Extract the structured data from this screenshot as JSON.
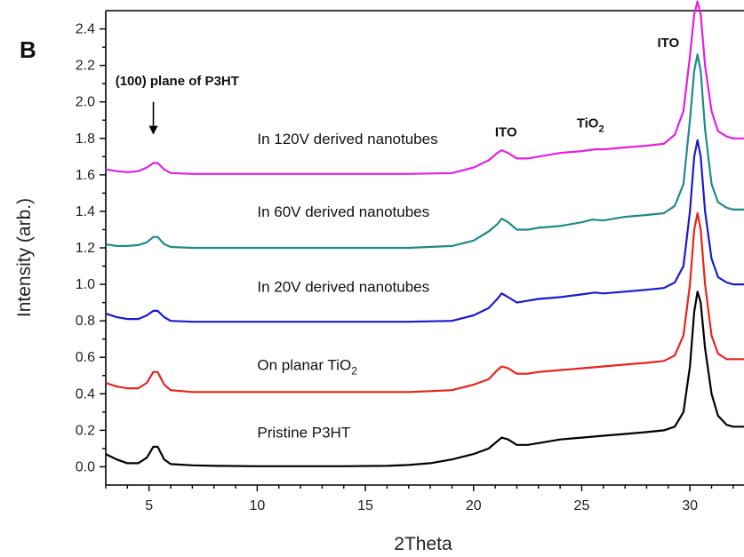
{
  "chart_data": {
    "type": "line",
    "panel_label": "B",
    "xlabel": "2Theta",
    "ylabel": "Intensity (arb.)",
    "xlim": [
      3,
      32.5
    ],
    "ylim": [
      -0.1,
      2.5
    ],
    "xticks": [
      5,
      10,
      15,
      20,
      25,
      30
    ],
    "yticks": [
      0.0,
      0.2,
      0.4,
      0.6,
      0.8,
      1.0,
      1.2,
      1.4,
      1.6,
      1.8,
      2.0,
      2.2,
      2.4
    ],
    "ytick_labels": [
      "0.0",
      "0.2",
      "0.4",
      "0.6",
      "0.8",
      "1.0",
      "1.2",
      "1.4",
      "1.6",
      "1.8",
      "2.0",
      "2.2",
      "2.4"
    ],
    "series": [
      {
        "color": "#000000",
        "label": {
          "text": "Pristine P3HT",
          "x": 10.0,
          "y": 0.16
        },
        "points": [
          [
            3,
            0.07
          ],
          [
            3.5,
            0.04
          ],
          [
            4,
            0.02
          ],
          [
            4.5,
            0.02
          ],
          [
            4.9,
            0.05
          ],
          [
            5.2,
            0.11
          ],
          [
            5.4,
            0.11
          ],
          [
            5.7,
            0.04
          ],
          [
            6,
            0.015
          ],
          [
            7,
            0.008
          ],
          [
            8,
            0.005
          ],
          [
            10,
            0.003
          ],
          [
            12,
            0.003
          ],
          [
            14,
            0.003
          ],
          [
            16,
            0.005
          ],
          [
            17,
            0.01
          ],
          [
            18,
            0.02
          ],
          [
            19,
            0.04
          ],
          [
            20,
            0.07
          ],
          [
            20.7,
            0.1
          ],
          [
            21.1,
            0.14
          ],
          [
            21.3,
            0.16
          ],
          [
            21.6,
            0.15
          ],
          [
            22,
            0.12
          ],
          [
            22.5,
            0.12
          ],
          [
            23,
            0.13
          ],
          [
            24,
            0.15
          ],
          [
            25,
            0.16
          ],
          [
            26,
            0.17
          ],
          [
            27,
            0.18
          ],
          [
            28,
            0.19
          ],
          [
            28.8,
            0.2
          ],
          [
            29.3,
            0.22
          ],
          [
            29.7,
            0.3
          ],
          [
            30,
            0.55
          ],
          [
            30.2,
            0.85
          ],
          [
            30.35,
            0.96
          ],
          [
            30.5,
            0.9
          ],
          [
            30.7,
            0.65
          ],
          [
            31,
            0.4
          ],
          [
            31.3,
            0.28
          ],
          [
            31.7,
            0.23
          ],
          [
            32,
            0.22
          ],
          [
            32.5,
            0.22
          ]
        ]
      },
      {
        "color": "#e8231c",
        "label": {
          "text": "On planar TiO",
          "sub": "2",
          "x": 10.0,
          "y": 0.53
        },
        "points": [
          [
            3,
            0.46
          ],
          [
            3.5,
            0.44
          ],
          [
            4,
            0.43
          ],
          [
            4.5,
            0.43
          ],
          [
            4.9,
            0.46
          ],
          [
            5.2,
            0.52
          ],
          [
            5.4,
            0.52
          ],
          [
            5.7,
            0.45
          ],
          [
            6,
            0.42
          ],
          [
            7,
            0.41
          ],
          [
            9,
            0.41
          ],
          [
            12,
            0.41
          ],
          [
            15,
            0.41
          ],
          [
            17,
            0.41
          ],
          [
            19,
            0.42
          ],
          [
            20,
            0.45
          ],
          [
            20.7,
            0.48
          ],
          [
            21.1,
            0.53
          ],
          [
            21.3,
            0.55
          ],
          [
            21.6,
            0.54
          ],
          [
            22,
            0.51
          ],
          [
            22.5,
            0.51
          ],
          [
            23,
            0.52
          ],
          [
            24,
            0.53
          ],
          [
            25,
            0.54
          ],
          [
            26,
            0.55
          ],
          [
            27,
            0.56
          ],
          [
            28,
            0.57
          ],
          [
            28.8,
            0.58
          ],
          [
            29.3,
            0.61
          ],
          [
            29.7,
            0.72
          ],
          [
            30,
            1.0
          ],
          [
            30.2,
            1.3
          ],
          [
            30.35,
            1.39
          ],
          [
            30.5,
            1.3
          ],
          [
            30.7,
            1.0
          ],
          [
            31,
            0.72
          ],
          [
            31.3,
            0.62
          ],
          [
            31.7,
            0.59
          ],
          [
            32,
            0.59
          ],
          [
            32.5,
            0.59
          ]
        ]
      },
      {
        "color": "#1a1acc",
        "label": {
          "text": "In 20V derived nanotubes",
          "x": 10.0,
          "y": 0.96
        },
        "points": [
          [
            3,
            0.84
          ],
          [
            3.5,
            0.82
          ],
          [
            4,
            0.81
          ],
          [
            4.5,
            0.81
          ],
          [
            4.9,
            0.83
          ],
          [
            5.2,
            0.855
          ],
          [
            5.4,
            0.855
          ],
          [
            5.7,
            0.82
          ],
          [
            6,
            0.8
          ],
          [
            7,
            0.795
          ],
          [
            9,
            0.795
          ],
          [
            12,
            0.795
          ],
          [
            15,
            0.795
          ],
          [
            17,
            0.795
          ],
          [
            19,
            0.8
          ],
          [
            20,
            0.83
          ],
          [
            20.7,
            0.87
          ],
          [
            21.1,
            0.92
          ],
          [
            21.3,
            0.95
          ],
          [
            21.6,
            0.93
          ],
          [
            22,
            0.9
          ],
          [
            22.5,
            0.91
          ],
          [
            23,
            0.92
          ],
          [
            24,
            0.93
          ],
          [
            25,
            0.945
          ],
          [
            25.6,
            0.955
          ],
          [
            26,
            0.95
          ],
          [
            27,
            0.96
          ],
          [
            28,
            0.97
          ],
          [
            28.8,
            0.98
          ],
          [
            29.3,
            1.01
          ],
          [
            29.7,
            1.1
          ],
          [
            30,
            1.4
          ],
          [
            30.2,
            1.7
          ],
          [
            30.35,
            1.79
          ],
          [
            30.5,
            1.7
          ],
          [
            30.7,
            1.4
          ],
          [
            31,
            1.14
          ],
          [
            31.3,
            1.04
          ],
          [
            31.7,
            1.01
          ],
          [
            32,
            1.0
          ],
          [
            32.5,
            1.0
          ]
        ]
      },
      {
        "color": "#1e8a86",
        "label": {
          "text": "In 60V derived nanotubes",
          "x": 10.0,
          "y": 1.37
        },
        "points": [
          [
            3,
            1.22
          ],
          [
            3.5,
            1.21
          ],
          [
            4,
            1.21
          ],
          [
            4.5,
            1.215
          ],
          [
            4.9,
            1.23
          ],
          [
            5.2,
            1.26
          ],
          [
            5.4,
            1.26
          ],
          [
            5.7,
            1.22
          ],
          [
            6,
            1.205
          ],
          [
            7,
            1.2
          ],
          [
            9,
            1.2
          ],
          [
            12,
            1.2
          ],
          [
            15,
            1.2
          ],
          [
            17,
            1.2
          ],
          [
            19,
            1.21
          ],
          [
            20,
            1.24
          ],
          [
            20.7,
            1.29
          ],
          [
            21.1,
            1.33
          ],
          [
            21.3,
            1.36
          ],
          [
            21.6,
            1.34
          ],
          [
            22,
            1.3
          ],
          [
            22.5,
            1.3
          ],
          [
            23,
            1.31
          ],
          [
            24,
            1.32
          ],
          [
            25,
            1.34
          ],
          [
            25.5,
            1.355
          ],
          [
            26,
            1.35
          ],
          [
            27,
            1.37
          ],
          [
            28,
            1.38
          ],
          [
            28.8,
            1.39
          ],
          [
            29.3,
            1.43
          ],
          [
            29.7,
            1.55
          ],
          [
            30,
            1.9
          ],
          [
            30.2,
            2.17
          ],
          [
            30.35,
            2.26
          ],
          [
            30.5,
            2.17
          ],
          [
            30.7,
            1.85
          ],
          [
            31,
            1.55
          ],
          [
            31.3,
            1.45
          ],
          [
            31.7,
            1.42
          ],
          [
            32,
            1.41
          ],
          [
            32.5,
            1.41
          ]
        ]
      },
      {
        "color": "#e31fe3",
        "label": {
          "text": "In 120V derived nanotubes",
          "x": 10.0,
          "y": 1.77
        },
        "points": [
          [
            3,
            1.63
          ],
          [
            3.5,
            1.62
          ],
          [
            4,
            1.615
          ],
          [
            4.5,
            1.62
          ],
          [
            4.9,
            1.64
          ],
          [
            5.2,
            1.665
          ],
          [
            5.4,
            1.665
          ],
          [
            5.7,
            1.63
          ],
          [
            6,
            1.61
          ],
          [
            7,
            1.605
          ],
          [
            9,
            1.605
          ],
          [
            12,
            1.605
          ],
          [
            15,
            1.605
          ],
          [
            17,
            1.605
          ],
          [
            19,
            1.61
          ],
          [
            20,
            1.64
          ],
          [
            20.7,
            1.68
          ],
          [
            21.1,
            1.72
          ],
          [
            21.3,
            1.735
          ],
          [
            21.6,
            1.72
          ],
          [
            22,
            1.69
          ],
          [
            22.5,
            1.69
          ],
          [
            23,
            1.7
          ],
          [
            24,
            1.72
          ],
          [
            25,
            1.73
          ],
          [
            25.6,
            1.74
          ],
          [
            26,
            1.74
          ],
          [
            27,
            1.75
          ],
          [
            28,
            1.76
          ],
          [
            28.8,
            1.77
          ],
          [
            29.3,
            1.82
          ],
          [
            29.7,
            1.95
          ],
          [
            30,
            2.25
          ],
          [
            30.2,
            2.48
          ],
          [
            30.35,
            2.55
          ],
          [
            30.5,
            2.48
          ],
          [
            30.7,
            2.2
          ],
          [
            31,
            1.95
          ],
          [
            31.3,
            1.84
          ],
          [
            31.7,
            1.81
          ],
          [
            32,
            1.8
          ],
          [
            32.5,
            1.8
          ]
        ]
      }
    ],
    "annotations": [
      {
        "text": "(100) plane of P3HT",
        "x": 6.3,
        "y": 2.09,
        "arrow": {
          "x": 5.2,
          "y_from": 2.0,
          "y_to": 1.82
        }
      },
      {
        "text": "ITO",
        "x": 21.5,
        "y": 1.81
      },
      {
        "text": "TiO",
        "sub": "2",
        "x": 25.4,
        "y": 1.86
      },
      {
        "text": "ITO",
        "x": 29.0,
        "y": 2.3
      }
    ]
  }
}
